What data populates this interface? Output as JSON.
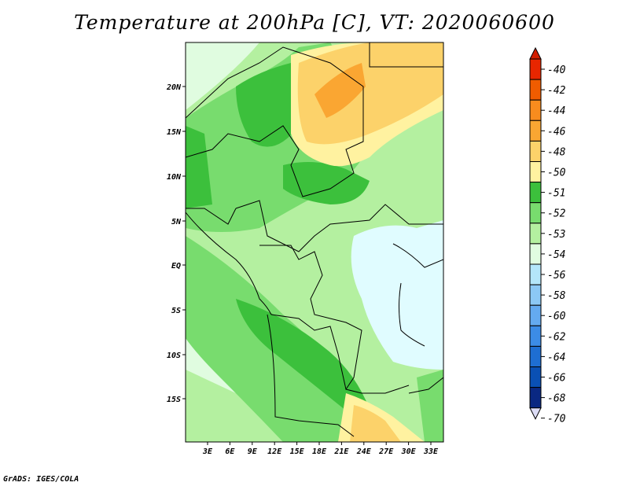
{
  "title": "Temperature at 200hPa [C], VT: 2020060600",
  "credit": "GrADS: IGES/COLA",
  "lat_ticks": [
    "20N",
    "15N",
    "10N",
    "5N",
    "EQ",
    "5S",
    "10S",
    "15S"
  ],
  "lon_ticks": [
    "3E",
    "6E",
    "9E",
    "12E",
    "15E",
    "18E",
    "21E",
    "24E",
    "27E",
    "30E",
    "33E"
  ],
  "colorbar": {
    "labels": [
      "-40",
      "-42",
      "-44",
      "-46",
      "-48",
      "-50",
      "-51",
      "-52",
      "-53",
      "-54",
      "-56",
      "-58",
      "-60",
      "-62",
      "-64",
      "-66",
      "-68",
      "-70"
    ],
    "colors": [
      "#e82600",
      "#f05c00",
      "#f88c1e",
      "#faa632",
      "#fcd26a",
      "#fff2a0",
      "#3cc03c",
      "#78dc6e",
      "#b4f0a0",
      "#e0fce0",
      "#b4e6fa",
      "#8cc8f5",
      "#64aaf0",
      "#3c8ce6",
      "#1e6ed2",
      "#0a50b4",
      "#0a2882",
      "#dcdcf5"
    ],
    "top_color": "#d21e00",
    "bottom_color": "#dcdcf5"
  },
  "map_colors": {
    "lt_blue": "#e0fce0",
    "pale_green": "#b4f0a0",
    "mid_green": "#78dc6e",
    "dark_green": "#3cc03c",
    "pale_yellow": "#fff2a0",
    "yellow": "#fcd26a",
    "orange": "#faa632",
    "cyan_ice": "#e0fcff"
  }
}
